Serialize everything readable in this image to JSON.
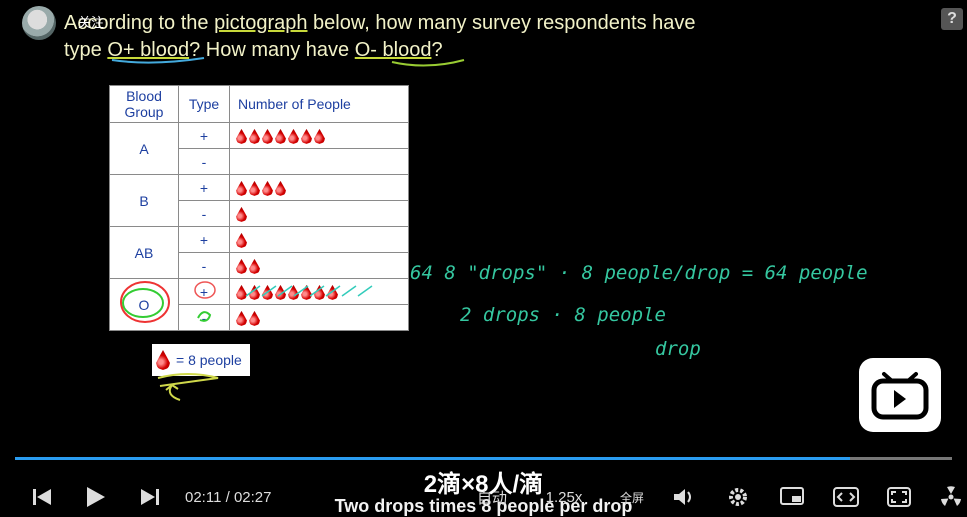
{
  "header": {
    "question_line1_pre": "According to the ",
    "question_line1_hl": "pictograph",
    "question_line1_post": " below, how many survey respondents have",
    "question_line2_pre": "type ",
    "question_line2_hl1": "O+ blood",
    "question_line2_mid": "? How many have ",
    "question_line2_hl2": "O- blood",
    "question_line2_post": "?",
    "avatar_caption": "关注"
  },
  "help_label": "?",
  "table": {
    "headers": [
      "Blood\nGroup",
      "Type",
      "Number of People"
    ],
    "groups": [
      {
        "group": "A",
        "rows": [
          {
            "type": "+",
            "drops": 7
          },
          {
            "type": "-",
            "drops": 0
          }
        ]
      },
      {
        "group": "B",
        "rows": [
          {
            "type": "+",
            "drops": 4
          },
          {
            "type": "-",
            "drops": 1
          }
        ]
      },
      {
        "group": "AB",
        "rows": [
          {
            "type": "+",
            "drops": 1
          },
          {
            "type": "-",
            "drops": 2
          }
        ]
      },
      {
        "group": "O",
        "rows": [
          {
            "type": "+",
            "drops": 8
          },
          {
            "type": "-",
            "drops": 2
          }
        ]
      }
    ]
  },
  "legend": {
    "text": "= 8 people"
  },
  "annotations": {
    "line1": "64  8 \"drops\"  ·  8  people/drop  =  64 people",
    "line2": "2  drops  ·  8  people",
    "line3": "drop"
  },
  "player": {
    "current_time": "02:11",
    "separator": "/",
    "total_time": "02:27",
    "progress": 0.891,
    "auto_label": "自动",
    "speed_label": "1.25x",
    "fullscreen_label": "全屏"
  },
  "subtitle": {
    "zh": "2滴×8人/滴",
    "en": "Two drops times 8 people per drop"
  },
  "colors": {
    "accent": "#2a9cf0",
    "handwriting": "#35c7a0",
    "drop": "#d40000"
  }
}
